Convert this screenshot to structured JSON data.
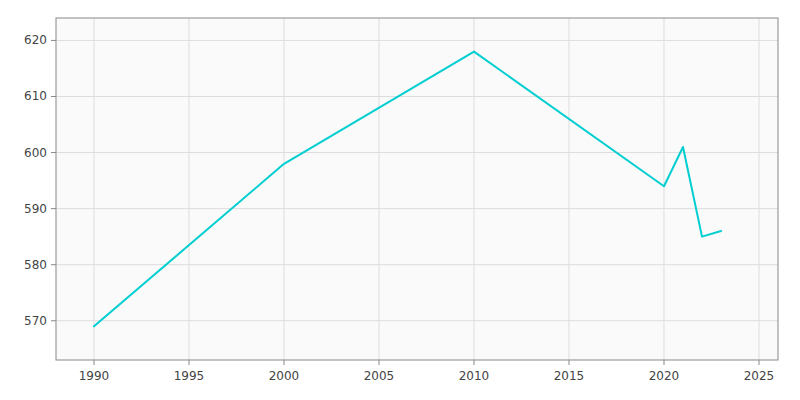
{
  "chart_data": {
    "type": "line",
    "x": [
      1990,
      2000,
      2010,
      2020,
      2021,
      2022,
      2023
    ],
    "values": [
      569,
      598,
      618,
      594,
      601,
      585,
      586
    ],
    "color": "#00CED1",
    "xlim": [
      1988,
      2026
    ],
    "ylim": [
      563,
      624
    ],
    "xticks": [
      1990,
      1995,
      2000,
      2005,
      2010,
      2015,
      2020,
      2025
    ],
    "yticks": [
      570,
      580,
      590,
      600,
      610,
      620
    ],
    "grid": true
  }
}
